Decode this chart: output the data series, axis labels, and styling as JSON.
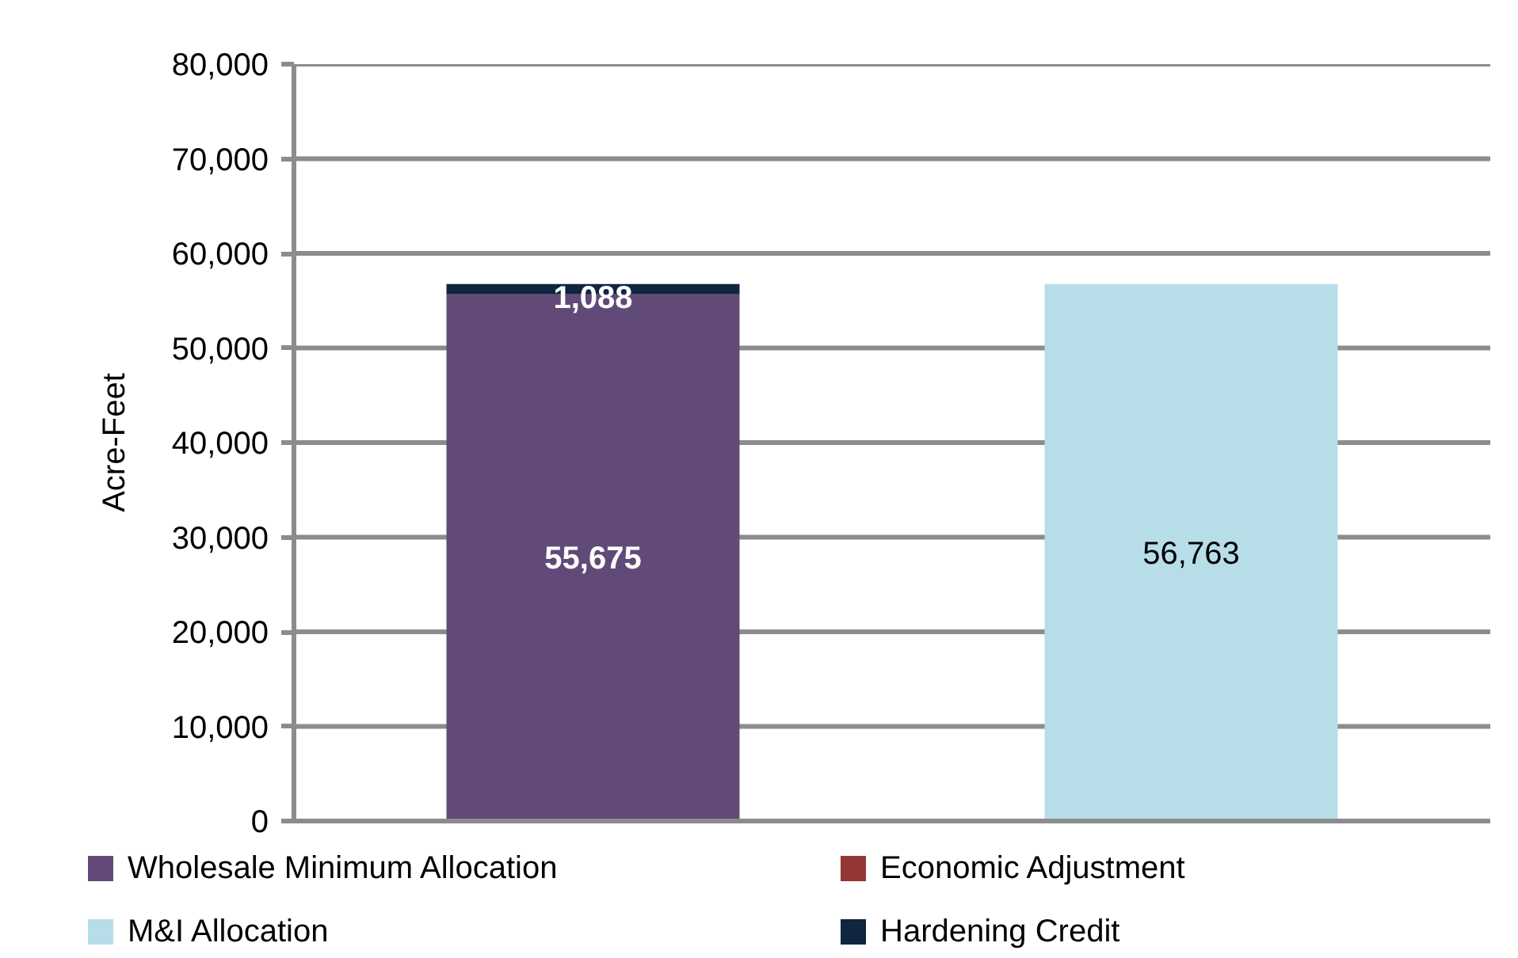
{
  "chart_data": {
    "type": "bar",
    "stacked": true,
    "categories": [
      null,
      null
    ],
    "series": [
      {
        "name": "Wholesale Minimum Allocation",
        "color": "#614a78",
        "values": [
          55675,
          null
        ],
        "value_labels": [
          "55,675",
          null
        ]
      },
      {
        "name": "Economic Adjustment",
        "color": "#953735",
        "values": [
          null,
          null
        ]
      },
      {
        "name": "M&I Allocation",
        "color": "#b7dee8",
        "values": [
          null,
          56763
        ],
        "value_labels": [
          null,
          "56,763"
        ]
      },
      {
        "name": "Hardening Credit",
        "color": "#10253f",
        "values": [
          1088,
          null
        ],
        "value_labels": [
          "1,088",
          null
        ]
      }
    ],
    "ylabel": "Acre-Feet",
    "ylim": [
      0,
      80000
    ],
    "yticks": [
      {
        "value": 0,
        "label": "0"
      },
      {
        "value": 10000,
        "label": "10,000"
      },
      {
        "value": 20000,
        "label": "20,000"
      },
      {
        "value": 30000,
        "label": "30,000"
      },
      {
        "value": 40000,
        "label": "40,000"
      },
      {
        "value": 50000,
        "label": "50,000"
      },
      {
        "value": 60000,
        "label": "60,000"
      },
      {
        "value": 70000,
        "label": "70,000"
      },
      {
        "value": 80000,
        "label": "80,000"
      }
    ],
    "grid": "y",
    "legend": "bottom"
  }
}
